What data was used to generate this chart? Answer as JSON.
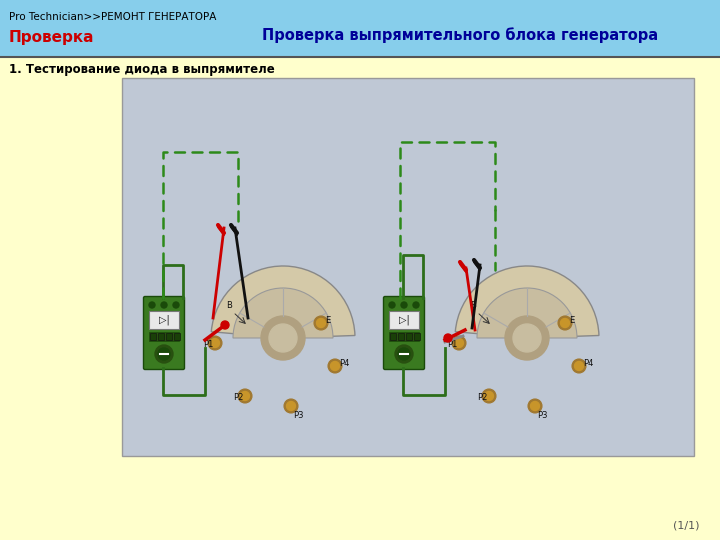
{
  "header_bg_color": "#87CEEB",
  "breadcrumb_text": "Pro Technician>>РЕМОНТ ГЕНЕРАТОРА",
  "breadcrumb_color": "#000000",
  "nav_label": "Проверка",
  "nav_label_color": "#CC0000",
  "title_right": "Проверка выпрямительного блока генератора",
  "title_right_color": "#000099",
  "separator_color": "#555555",
  "body_bg_color": "#FFFFCC",
  "content_box_bg": "#BFC8D5",
  "content_box_border": "#999999",
  "section_title": "1. Тестирование диода в выпрямителе",
  "section_title_color": "#000000",
  "page_indicator": "(1/1)",
  "page_indicator_color": "#555555",
  "wire_green": "#2d6e1a",
  "wire_dashed": "#2d8a1a",
  "wire_red": "#cc0000",
  "wire_black": "#111111",
  "meter_green": "#3a7a20",
  "meter_dark": "#1a4a0a",
  "rectifier_beige": "#d4c9a8",
  "rectifier_dark": "#b8aa88",
  "connector_orange": "#c8952a",
  "fig_width": 7.2,
  "fig_height": 5.4,
  "dpi": 100
}
